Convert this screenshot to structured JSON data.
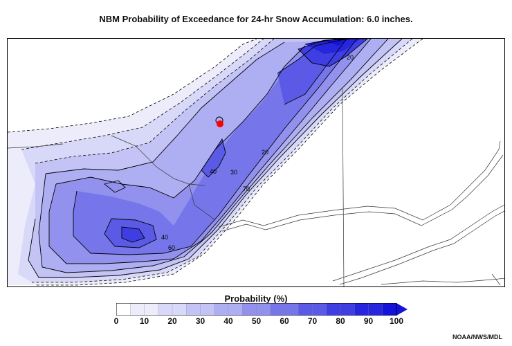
{
  "title": "NBM Probability of Exceedance for 24-hr Snow Accumulation: 6.0 inches.",
  "legend": {
    "title": "Probability (%)",
    "ticks": [
      "0",
      "10",
      "20",
      "30",
      "40",
      "50",
      "60",
      "70",
      "80",
      "90",
      "100"
    ],
    "colors": [
      "#ffffff",
      "#ececfb",
      "#d8d8f8",
      "#c3c3f5",
      "#aeaef2",
      "#9292ee",
      "#7676ea",
      "#5a5ae6",
      "#3e3ee2",
      "#2626de",
      "#1414d8"
    ]
  },
  "map": {
    "contour_labels": [
      "20",
      "30",
      "40",
      "40",
      "60",
      "70",
      "20"
    ],
    "marker_color": "#ff0000",
    "fill_colors": {
      "p5": "#ececfb",
      "p10": "#d8d8f8",
      "p20": "#c3c3f5",
      "p30": "#aeaef2",
      "p40": "#9292ee",
      "p50": "#7676ea",
      "p60": "#5a5ae6",
      "p70": "#3e3ee2",
      "p80": "#2626de",
      "p90": "#1414d8"
    }
  },
  "credit": "NOAA/NWS/MDL"
}
